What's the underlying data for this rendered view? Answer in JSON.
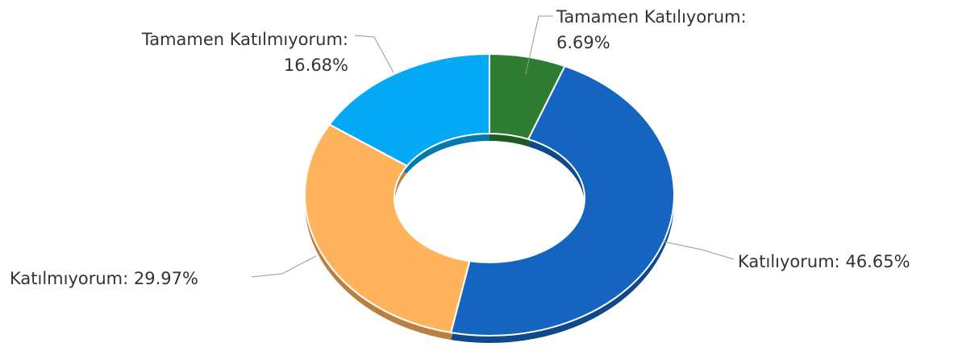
{
  "chart_data": {
    "type": "pie",
    "donut": true,
    "categories": [
      "Tamamen Katılıyorum:",
      "Katılıyorum:",
      "Katılmıyorum:",
      "Tamamen Katılmıyorum:"
    ],
    "values": [
      6.69,
      46.65,
      29.97,
      16.68
    ],
    "value_labels": [
      "6.69%",
      "46.65%",
      "29.97%",
      "16.68%"
    ],
    "colors": [
      "#2e7d32",
      "#1565c0",
      "#ffb35c",
      "#03a9f4"
    ]
  }
}
